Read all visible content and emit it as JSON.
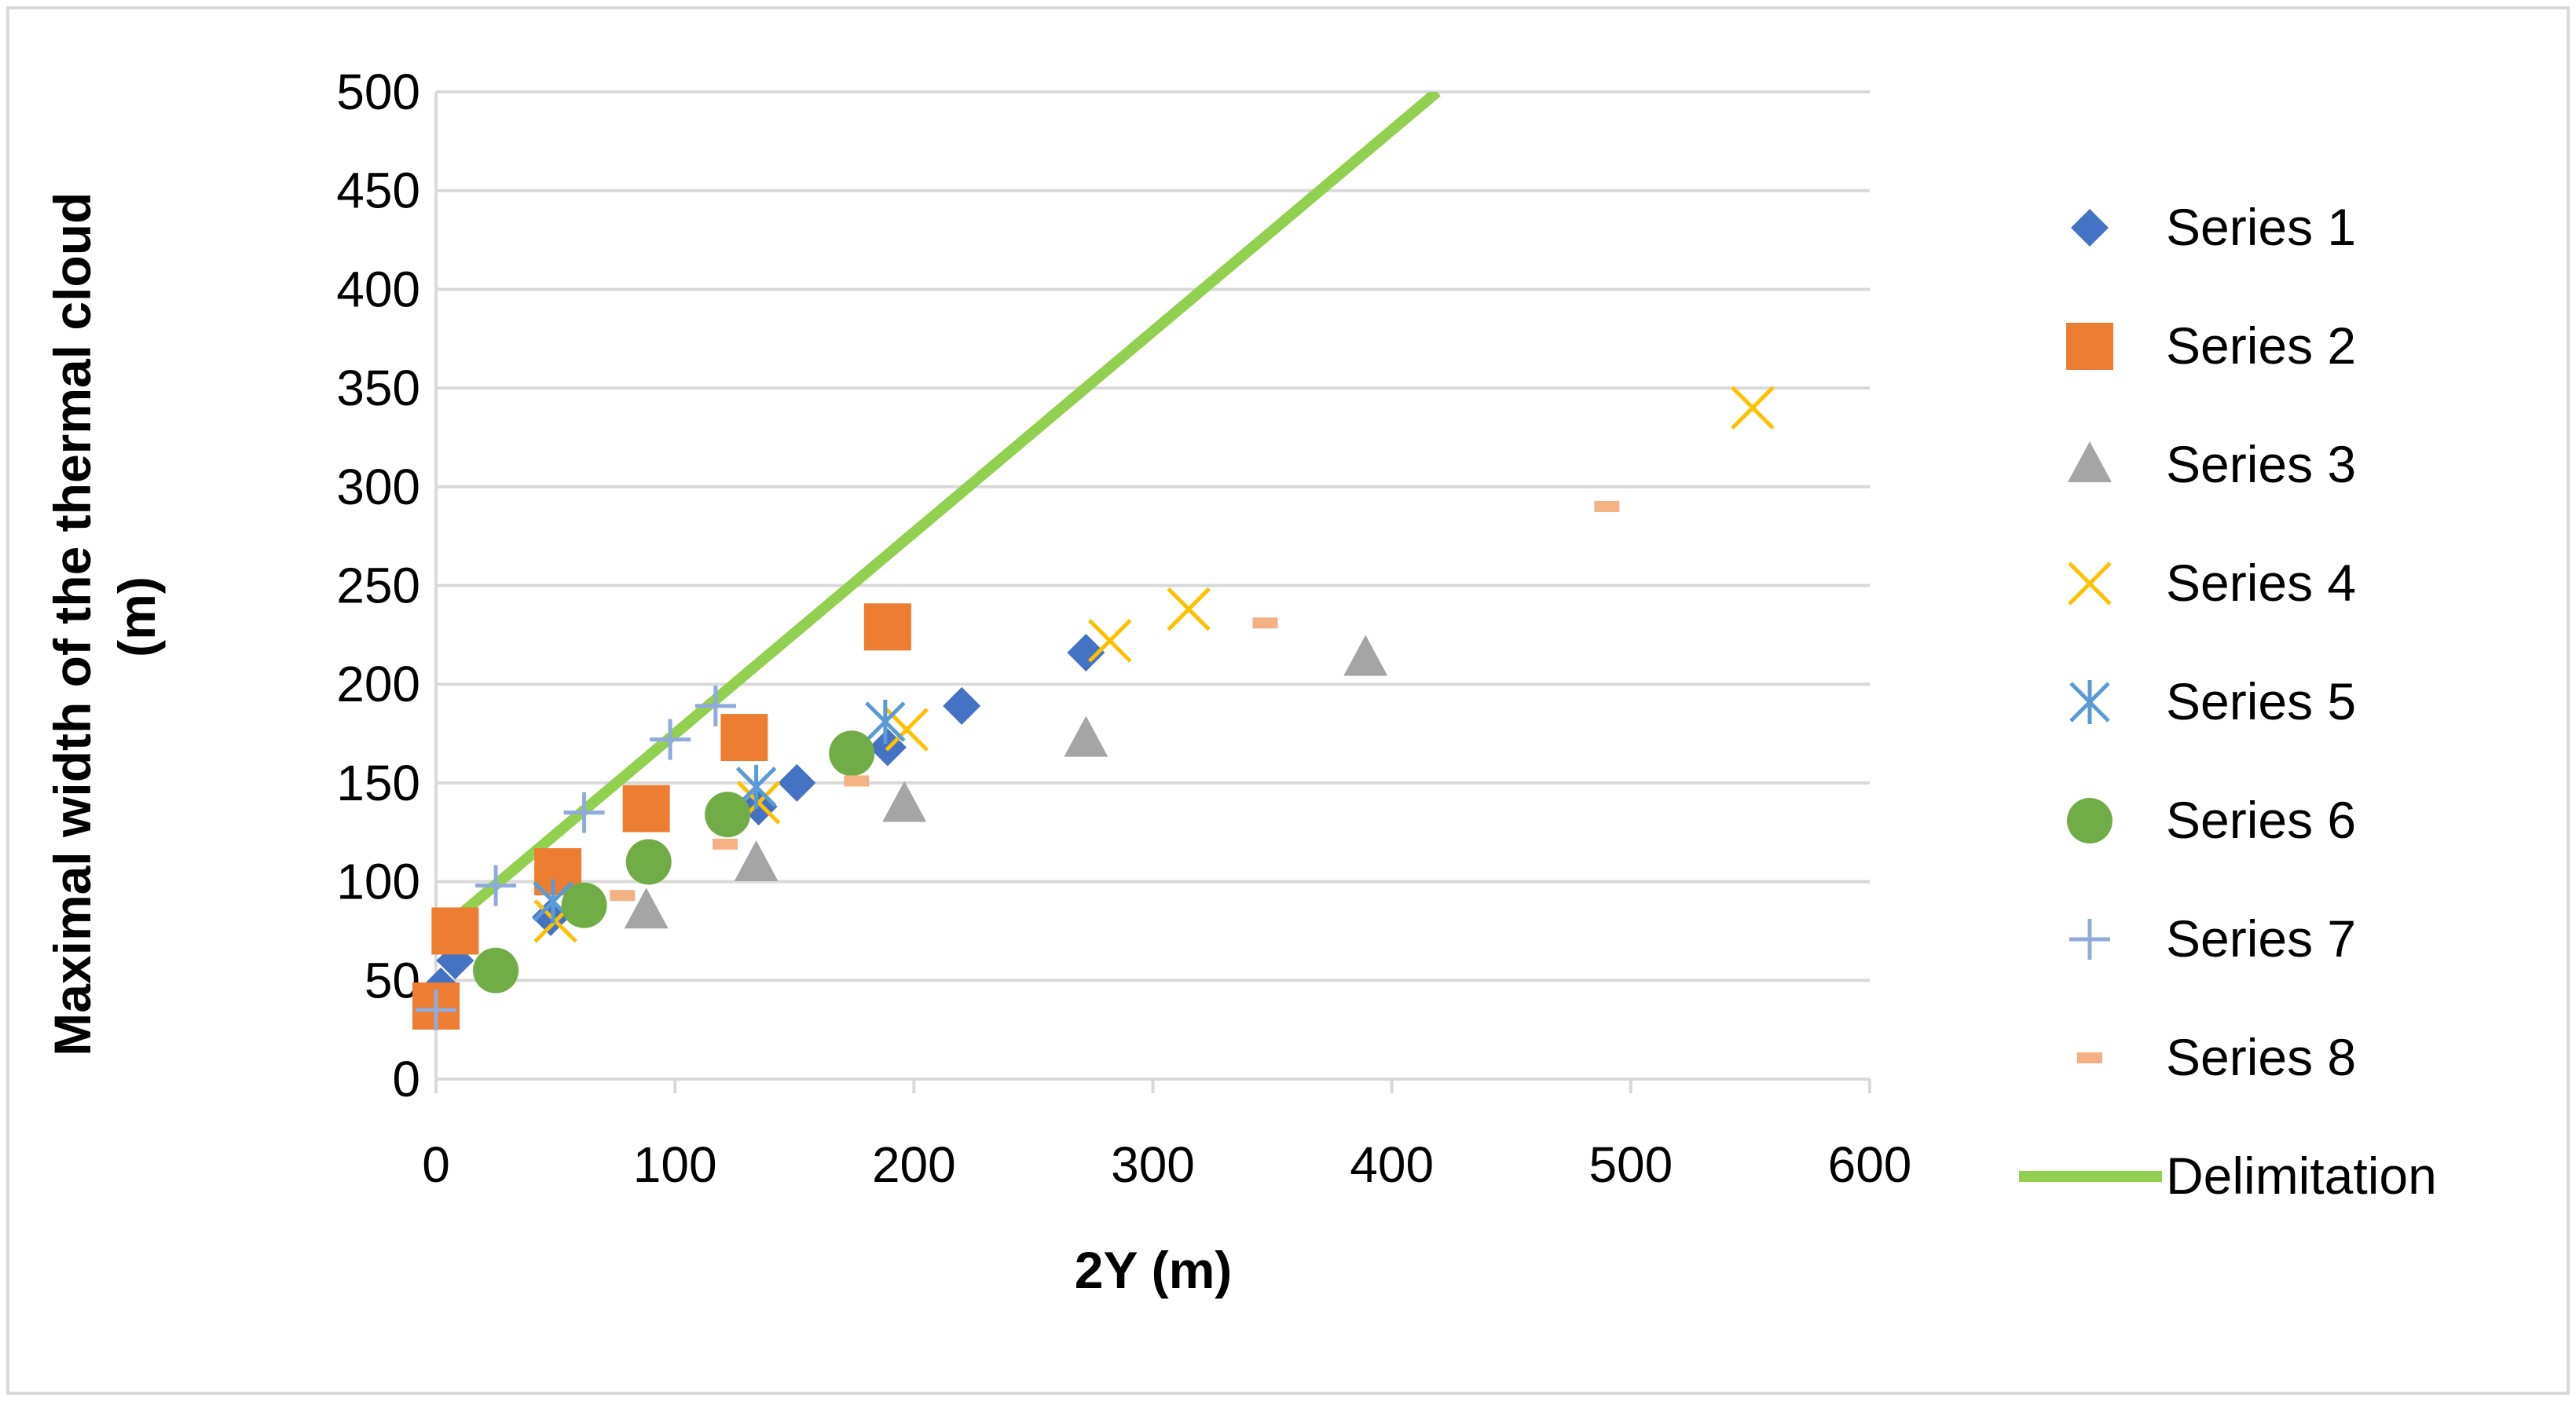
{
  "chart_data": {
    "type": "scatter",
    "title": "",
    "xlabel": "2Y (m)",
    "ylabel_lines": [
      "Maximal width of the thermal cloud",
      "(m)"
    ],
    "xlim": [
      0,
      600
    ],
    "ylim": [
      0,
      500
    ],
    "x_ticks": [
      0,
      100,
      200,
      300,
      400,
      500,
      600
    ],
    "y_ticks": [
      0,
      50,
      100,
      150,
      200,
      250,
      300,
      350,
      400,
      450,
      500
    ],
    "grid": "horizontal",
    "legend_position": "right",
    "series": [
      {
        "name": "Series 1",
        "marker": "diamond",
        "color": "#4472C4",
        "points": [
          [
            2,
            47
          ],
          [
            8,
            60
          ],
          [
            48,
            82
          ],
          [
            135,
            138
          ],
          [
            151,
            150
          ],
          [
            189,
            168
          ],
          [
            220,
            189
          ],
          [
            272,
            216
          ]
        ]
      },
      {
        "name": "Series 2",
        "marker": "square",
        "color": "#ED7D31",
        "points": [
          [
            0,
            37
          ],
          [
            8,
            75
          ],
          [
            51,
            105
          ],
          [
            88,
            137
          ],
          [
            129,
            173
          ],
          [
            189,
            229
          ]
        ]
      },
      {
        "name": "Series 3",
        "marker": "triangle",
        "color": "#A5A5A5",
        "points": [
          [
            88,
            85
          ],
          [
            134,
            109
          ],
          [
            196,
            139
          ],
          [
            272,
            172
          ],
          [
            389,
            213
          ]
        ]
      },
      {
        "name": "Series 4",
        "marker": "x",
        "color": "#FFC000",
        "points": [
          [
            50,
            80
          ],
          [
            135,
            140
          ],
          [
            197,
            177
          ],
          [
            282,
            222
          ],
          [
            315,
            238
          ],
          [
            551,
            340
          ]
        ]
      },
      {
        "name": "Series 5",
        "marker": "star",
        "color": "#5B9BD5",
        "points": [
          [
            49,
            90
          ],
          [
            134,
            148
          ],
          [
            188,
            181
          ]
        ]
      },
      {
        "name": "Series 6",
        "marker": "circle",
        "color": "#70AD47",
        "points": [
          [
            25,
            55
          ],
          [
            62,
            88
          ],
          [
            89,
            110
          ],
          [
            122,
            134
          ],
          [
            174,
            165
          ]
        ]
      },
      {
        "name": "Series 7",
        "marker": "plus",
        "color": "#8FAADC",
        "points": [
          [
            0,
            35
          ],
          [
            25,
            98
          ],
          [
            62,
            135
          ],
          [
            98,
            172
          ],
          [
            117,
            189
          ]
        ]
      },
      {
        "name": "Series 8",
        "marker": "dash",
        "color": "#F4B183",
        "points": [
          [
            78,
            93
          ],
          [
            121,
            119
          ],
          [
            176,
            151
          ],
          [
            347,
            231
          ],
          [
            490,
            290
          ]
        ]
      }
    ],
    "delimitation": {
      "name": "Delimitation",
      "color": "#92D050",
      "points": [
        [
          0,
          73
        ],
        [
          419,
          500
        ]
      ]
    }
  }
}
